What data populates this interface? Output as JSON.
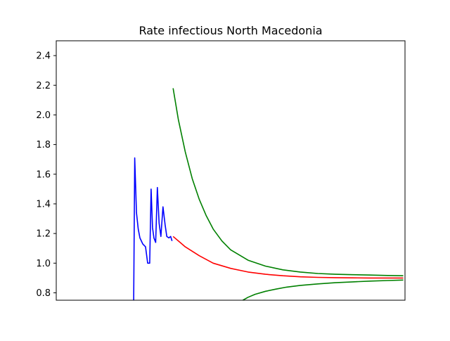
{
  "chart_data": {
    "type": "line",
    "title": "Rate infectious North Macedonia",
    "xlabel": "",
    "ylabel": "",
    "xlim": [
      0,
      100
    ],
    "ylim": [
      0.75,
      2.5
    ],
    "yticks": [
      "0.8",
      "1.0",
      "1.2",
      "1.4",
      "1.6",
      "1.8",
      "2.0",
      "2.2",
      "2.4"
    ],
    "ytick_values": [
      0.8,
      1.0,
      1.2,
      1.4,
      1.6,
      1.8,
      2.0,
      2.2,
      2.4
    ],
    "xticks_visible": false,
    "grid": false,
    "legend": "none",
    "series": [
      {
        "color": "#0000ff",
        "x": [
          22.2,
          22.5,
          23.0,
          23.5,
          24.0,
          24.8,
          25.6,
          26.2,
          26.8,
          27.2,
          27.6,
          28.0,
          28.5,
          29.0,
          29.5,
          30.0,
          30.3,
          30.6,
          31.2,
          31.7,
          32.3,
          32.8,
          33.2
        ],
        "y": [
          0.73,
          1.71,
          1.34,
          1.23,
          1.17,
          1.13,
          1.11,
          1.0,
          1.0,
          1.5,
          1.24,
          1.17,
          1.14,
          1.51,
          1.27,
          1.18,
          1.28,
          1.38,
          1.26,
          1.18,
          1.17,
          1.18,
          1.15
        ]
      },
      {
        "color": "#ff0000",
        "x": [
          33.5,
          37,
          41,
          45,
          50,
          55,
          60,
          65,
          70,
          75,
          80,
          85,
          90,
          95,
          99.5
        ],
        "y": [
          1.18,
          1.11,
          1.05,
          1.0,
          0.965,
          0.94,
          0.925,
          0.915,
          0.908,
          0.904,
          0.902,
          0.901,
          0.9,
          0.9,
          0.9
        ]
      },
      {
        "color": "#008000",
        "x": [
          33.5,
          35,
          37,
          39,
          41,
          43,
          45,
          47.5,
          50,
          55,
          60,
          65,
          70,
          75,
          80,
          85,
          90,
          95,
          99.5
        ],
        "y": [
          2.18,
          1.97,
          1.75,
          1.57,
          1.43,
          1.32,
          1.23,
          1.15,
          1.09,
          1.02,
          0.98,
          0.955,
          0.94,
          0.93,
          0.925,
          0.922,
          0.92,
          0.917,
          0.915
        ]
      },
      {
        "color": "#008000",
        "x": [
          53.5,
          55,
          57,
          60,
          63,
          66,
          70,
          75,
          80,
          85,
          90,
          95,
          99.5
        ],
        "y": [
          0.75,
          0.77,
          0.79,
          0.81,
          0.825,
          0.838,
          0.85,
          0.86,
          0.868,
          0.874,
          0.879,
          0.883,
          0.886
        ]
      }
    ]
  }
}
